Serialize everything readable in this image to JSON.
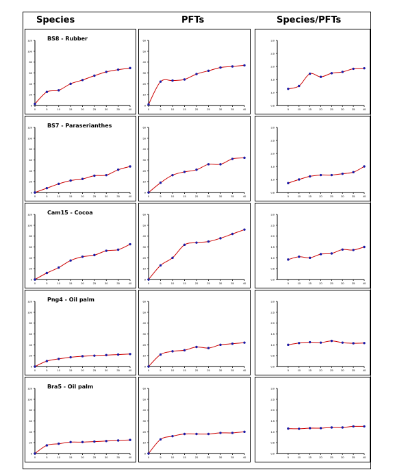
{
  "headers": [
    "Species",
    "PFTs",
    "Species/PFTs"
  ],
  "rows": [
    {
      "title": "BS8 - Rubber"
    },
    {
      "title": "BS7 - Paraserianthes"
    },
    {
      "title": "Cam15 - Cocoa"
    },
    {
      "title": "Png4 - Oil palm"
    },
    {
      "title": "Bra5 - Oil palm"
    }
  ],
  "chart_data": [
    {
      "type": "line",
      "row": "BS8 - Rubber",
      "column": "Species",
      "x": [
        0,
        5,
        10,
        15,
        20,
        25,
        30,
        35,
        40
      ],
      "y": [
        3,
        25,
        28,
        40,
        47,
        55,
        62,
        66,
        69
      ],
      "xlim": [
        0,
        40
      ],
      "ylim": [
        0,
        120
      ],
      "xticks": [
        "0",
        "5",
        "10",
        "15",
        "20",
        "25",
        "30",
        "35",
        "40"
      ],
      "yticks": [
        "0",
        "20",
        "40",
        "60",
        "80",
        "100",
        "120"
      ]
    },
    {
      "type": "line",
      "row": "BS8 - Rubber",
      "column": "PFTs",
      "x": [
        0,
        5,
        10,
        15,
        20,
        25,
        30,
        35,
        40
      ],
      "y": [
        1,
        22,
        23,
        24,
        29,
        32,
        35,
        36,
        37
      ],
      "xlim": [
        0,
        40
      ],
      "ylim": [
        0,
        60
      ],
      "xticks": [
        "0",
        "5",
        "10",
        "15",
        "20",
        "25",
        "30",
        "35",
        "40"
      ],
      "yticks": [
        "0",
        "10",
        "20",
        "30",
        "40",
        "50",
        "60"
      ]
    },
    {
      "type": "line",
      "row": "BS8 - Rubber",
      "column": "Species/PFTs",
      "x": [
        5,
        10,
        15,
        20,
        25,
        30,
        35,
        40
      ],
      "y": [
        1.14,
        1.25,
        1.72,
        1.6,
        1.74,
        1.79,
        1.91,
        1.93
      ],
      "xlim": [
        0,
        40
      ],
      "ylim": [
        0.5,
        3.0
      ],
      "xticks": [
        "5",
        "10",
        "15",
        "20",
        "25",
        "30",
        "35",
        "40"
      ],
      "yticks": [
        "0.5",
        "1.0",
        "1.5",
        "2.0",
        "2.5",
        "3.0"
      ]
    },
    {
      "type": "line",
      "row": "BS7 - Paraserianthes",
      "column": "Species",
      "x": [
        0,
        5,
        10,
        15,
        20,
        25,
        30,
        35,
        40
      ],
      "y": [
        0,
        8,
        16,
        22,
        25,
        31,
        32,
        42,
        48
      ],
      "xlim": [
        0,
        40
      ],
      "ylim": [
        0,
        120
      ],
      "xticks": [
        "0",
        "5",
        "10",
        "15",
        "20",
        "25",
        "30",
        "35",
        "40"
      ],
      "yticks": [
        "0",
        "20",
        "40",
        "60",
        "80",
        "100",
        "120"
      ]
    },
    {
      "type": "line",
      "row": "BS7 - Paraserianthes",
      "column": "PFTs",
      "x": [
        0,
        5,
        10,
        15,
        20,
        25,
        30,
        35,
        40
      ],
      "y": [
        0,
        9,
        16,
        19,
        21,
        26,
        26,
        31,
        32
      ],
      "xlim": [
        0,
        40
      ],
      "ylim": [
        0,
        60
      ],
      "xticks": [
        "0",
        "5",
        "10",
        "15",
        "20",
        "25",
        "30",
        "35",
        "40"
      ],
      "yticks": [
        "0",
        "10",
        "20",
        "30",
        "40",
        "50",
        "60"
      ]
    },
    {
      "type": "line",
      "row": "BS7 - Paraserianthes",
      "column": "Species/PFTs",
      "x": [
        5,
        10,
        15,
        20,
        25,
        30,
        35,
        40
      ],
      "y": [
        0.86,
        1.0,
        1.12,
        1.17,
        1.17,
        1.22,
        1.28,
        1.5
      ],
      "xlim": [
        0,
        40
      ],
      "ylim": [
        0.5,
        3.0
      ],
      "xticks": [
        "5",
        "10",
        "15",
        "20",
        "25",
        "30",
        "35",
        "40"
      ],
      "yticks": [
        "0.5",
        "1.0",
        "1.5",
        "2.0",
        "2.5",
        "3.0"
      ]
    },
    {
      "type": "line",
      "row": "Cam15 - Cocoa",
      "column": "Species",
      "x": [
        0,
        5,
        10,
        15,
        20,
        25,
        30,
        35,
        40
      ],
      "y": [
        0,
        12,
        22,
        35,
        42,
        45,
        53,
        55,
        65
      ],
      "xlim": [
        0,
        40
      ],
      "ylim": [
        0,
        120
      ],
      "xticks": [
        "0",
        "5",
        "10",
        "15",
        "20",
        "25",
        "30",
        "35",
        "40"
      ],
      "yticks": [
        "0",
        "20",
        "40",
        "60",
        "80",
        "100",
        "120"
      ]
    },
    {
      "type": "line",
      "row": "Cam15 - Cocoa",
      "column": "PFTs",
      "x": [
        0,
        5,
        10,
        15,
        20,
        25,
        30,
        35,
        40
      ],
      "y": [
        0,
        13,
        20,
        32,
        34,
        35,
        38,
        42,
        46
      ],
      "xlim": [
        0,
        40
      ],
      "ylim": [
        0,
        60
      ],
      "xticks": [
        "0",
        "5",
        "10",
        "15",
        "20",
        "25",
        "30",
        "35",
        "40"
      ],
      "yticks": [
        "0",
        "10",
        "20",
        "30",
        "40",
        "50",
        "60"
      ]
    },
    {
      "type": "line",
      "row": "Cam15 - Cocoa",
      "column": "Species/PFTs",
      "x": [
        5,
        10,
        15,
        20,
        25,
        30,
        35,
        40
      ],
      "y": [
        0.92,
        1.05,
        1.0,
        1.17,
        1.2,
        1.38,
        1.36,
        1.5
      ],
      "xlim": [
        0,
        40
      ],
      "ylim": [
        0.0,
        3.0
      ],
      "xticks": [
        "5",
        "10",
        "15",
        "20",
        "25",
        "30",
        "35",
        "40"
      ],
      "yticks": [
        "0.0",
        "0.5",
        "1.0",
        "1.5",
        "2.0",
        "2.5",
        "3.0"
      ]
    },
    {
      "type": "line",
      "row": "Png4 - Oil palm",
      "column": "Species",
      "x": [
        0,
        5,
        10,
        15,
        20,
        25,
        30,
        35,
        40
      ],
      "y": [
        0,
        10,
        14,
        17,
        19,
        20,
        21,
        22,
        23
      ],
      "xlim": [
        0,
        40
      ],
      "ylim": [
        0,
        120
      ],
      "xticks": [
        "0",
        "5",
        "10",
        "15",
        "20",
        "25",
        "30",
        "35",
        "40"
      ],
      "yticks": [
        "0",
        "20",
        "40",
        "60",
        "80",
        "100",
        "120"
      ]
    },
    {
      "type": "line",
      "row": "Png4 - Oil palm",
      "column": "PFTs",
      "x": [
        0,
        5,
        10,
        15,
        20,
        25,
        30,
        35,
        40
      ],
      "y": [
        0,
        11,
        14,
        15,
        18,
        17,
        20,
        21,
        22
      ],
      "xlim": [
        0,
        40
      ],
      "ylim": [
        0,
        60
      ],
      "xticks": [
        "0",
        "5",
        "10",
        "15",
        "20",
        "25",
        "30",
        "35",
        "40"
      ],
      "yticks": [
        "0",
        "10",
        "20",
        "30",
        "40",
        "50",
        "60"
      ]
    },
    {
      "type": "line",
      "row": "Png4 - Oil palm",
      "column": "Species/PFTs",
      "x": [
        5,
        10,
        15,
        20,
        25,
        30,
        35,
        40
      ],
      "y": [
        1.0,
        1.08,
        1.12,
        1.1,
        1.18,
        1.1,
        1.07,
        1.08
      ],
      "xlim": [
        0,
        40
      ],
      "ylim": [
        0.0,
        3.0
      ],
      "xticks": [
        "5",
        "10",
        "15",
        "20",
        "25",
        "30",
        "35",
        "40"
      ],
      "yticks": [
        "0.0",
        "0.5",
        "1.0",
        "1.5",
        "2.0",
        "2.5",
        "3.0"
      ]
    },
    {
      "type": "line",
      "row": "Bra5 - Oil palm",
      "column": "Species",
      "x": [
        0,
        5,
        10,
        15,
        20,
        25,
        30,
        35,
        40
      ],
      "y": [
        0,
        15,
        18,
        21,
        21,
        22,
        23,
        24,
        25
      ],
      "xlim": [
        0,
        40
      ],
      "ylim": [
        0,
        120
      ],
      "xticks": [
        "0",
        "5",
        "10",
        "15",
        "20",
        "25",
        "30",
        "35",
        "40"
      ],
      "yticks": [
        "0",
        "20",
        "40",
        "60",
        "80",
        "100",
        "120"
      ]
    },
    {
      "type": "line",
      "row": "Bra5 - Oil palm",
      "column": "PFTs",
      "x": [
        0,
        5,
        10,
        15,
        20,
        25,
        30,
        35,
        40
      ],
      "y": [
        0,
        13,
        16,
        18,
        18,
        18,
        19,
        19,
        20
      ],
      "xlim": [
        0,
        40
      ],
      "ylim": [
        0,
        60
      ],
      "xticks": [
        "0",
        "5",
        "10",
        "15",
        "20",
        "25",
        "30",
        "35",
        "40"
      ],
      "yticks": [
        "0",
        "10",
        "20",
        "30",
        "40",
        "50",
        "60"
      ]
    },
    {
      "type": "line",
      "row": "Bra5 - Oil palm",
      "column": "Species/PFTs",
      "x": [
        5,
        10,
        15,
        20,
        25,
        30,
        35,
        40
      ],
      "y": [
        1.15,
        1.14,
        1.17,
        1.17,
        1.2,
        1.2,
        1.25,
        1.25
      ],
      "xlim": [
        0,
        40
      ],
      "ylim": [
        0.0,
        3.0
      ],
      "xticks": [
        "5",
        "10",
        "15",
        "20",
        "25",
        "30",
        "35",
        "40"
      ],
      "yticks": [
        "0.0",
        "0.5",
        "1.0",
        "1.5",
        "2.0",
        "2.5",
        "3.0"
      ]
    }
  ],
  "colors": {
    "line": "#cc0000",
    "marker": "#1a1aa6",
    "axis": "#000000"
  }
}
